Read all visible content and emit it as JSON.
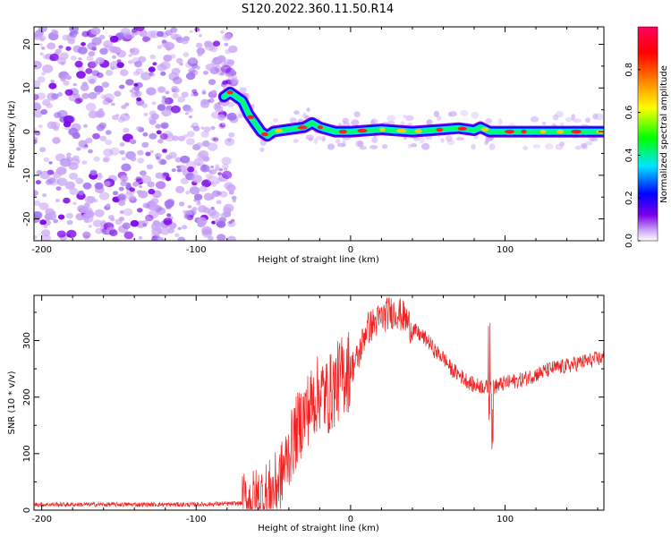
{
  "title": "S120.2022.360.11.50.R14",
  "chart_data": [
    {
      "type": "heatmap",
      "xlabel": "Height of straight line (km)",
      "ylabel": "Frequency (Hz)",
      "xlim": [
        -205,
        164
      ],
      "ylim": [
        -25,
        24
      ],
      "xticks": [
        -200,
        -100,
        0,
        100
      ],
      "yticks": [
        -20,
        -10,
        0,
        10,
        20
      ],
      "colorbar": {
        "label": "Normalized spectral amplitude",
        "range": [
          0,
          1
        ],
        "ticks": [
          "0.0",
          "0.2",
          "0.4",
          "0.6",
          "0.8"
        ],
        "tick_values": [
          0,
          0.2,
          0.4,
          0.6,
          0.8
        ],
        "colors": [
          "#ffffff",
          "#c9a3f5",
          "#7b00e8",
          "#0000ff",
          "#00e5ff",
          "#00ff00",
          "#ffff00",
          "#ff8000",
          "#ff0000",
          "#ff0060"
        ]
      },
      "ridge": {
        "x": [
          -82,
          -78,
          -74,
          -70,
          -66,
          -62,
          -58,
          -54,
          -50,
          -40,
          -30,
          -25,
          -20,
          -10,
          0,
          20,
          40,
          60,
          70,
          80,
          84,
          90,
          100,
          120,
          140,
          164
        ],
        "y": [
          8,
          9,
          8,
          7,
          4,
          2,
          0,
          -1,
          0,
          0.5,
          1,
          2,
          1,
          0,
          0,
          0.5,
          0,
          0.5,
          0.8,
          0.3,
          1,
          0,
          0,
          0,
          0,
          0
        ]
      },
      "noise_region_x": [
        -205,
        -75
      ]
    },
    {
      "type": "line",
      "xlabel": "Height of straight line (km)",
      "ylabel": "SNR (10 * v/v)",
      "xlim": [
        -205,
        164
      ],
      "ylim": [
        0,
        380
      ],
      "xticks": [
        -200,
        -100,
        0,
        100
      ],
      "yticks": [
        0,
        100,
        200,
        300
      ],
      "series_color": "#ee2222",
      "x": [
        -205,
        -150,
        -100,
        -70,
        -60,
        -50,
        -45,
        -40,
        -35,
        -30,
        -25,
        -20,
        -15,
        -10,
        -5,
        0,
        5,
        10,
        15,
        20,
        25,
        30,
        35,
        40,
        45,
        50,
        55,
        60,
        65,
        70,
        75,
        80,
        85,
        90,
        95,
        100,
        110,
        120,
        130,
        140,
        150,
        164
      ],
      "y": [
        10,
        10,
        10,
        12,
        20,
        35,
        60,
        100,
        140,
        170,
        190,
        210,
        200,
        220,
        240,
        250,
        270,
        320,
        330,
        340,
        350,
        350,
        340,
        320,
        310,
        300,
        280,
        270,
        250,
        240,
        230,
        220,
        220,
        215,
        220,
        225,
        230,
        240,
        250,
        255,
        262,
        270
      ]
    }
  ]
}
